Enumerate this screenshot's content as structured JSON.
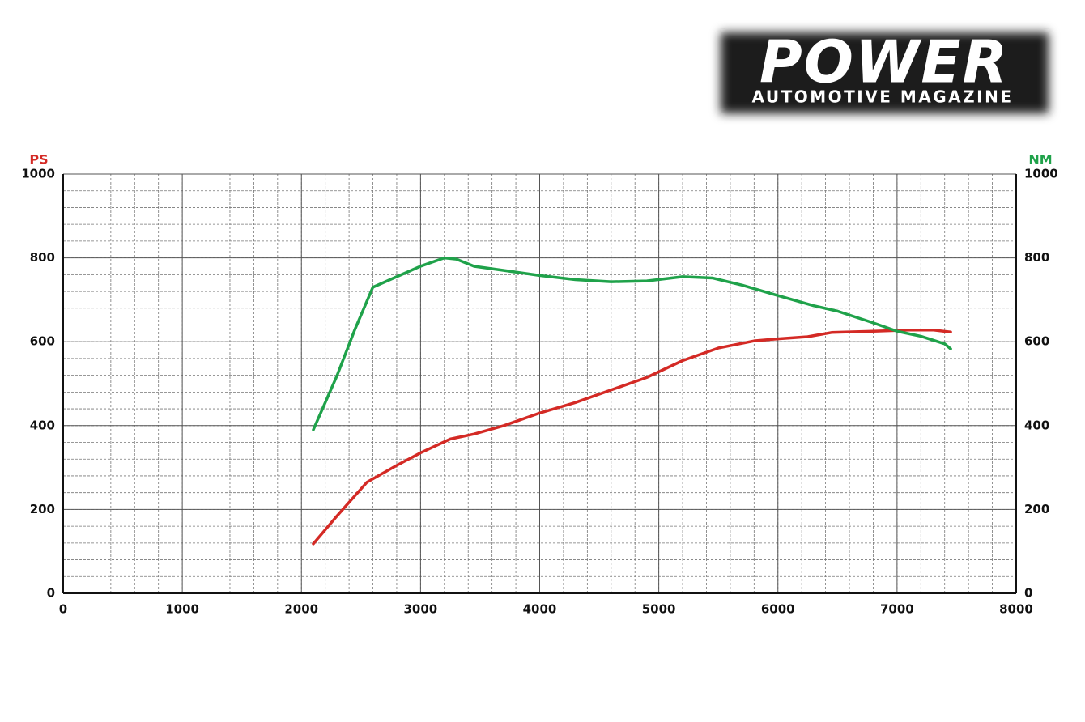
{
  "logo": {
    "title": "POWER",
    "subtitle": "AUTOMOTIVE MAGAZINE"
  },
  "chart_data": {
    "type": "line",
    "x_ticks_source": null,
    "series": [
      {
        "name": "PS",
        "color": "#d42a25",
        "x": [
          2100,
          2300,
          2550,
          2800,
          3000,
          3250,
          3450,
          3700,
          4000,
          4300,
          4600,
          4900,
          5200,
          5500,
          5800,
          6000,
          6250,
          6450,
          6800,
          7100,
          7300,
          7450
        ],
        "values": [
          118,
          185,
          265,
          305,
          335,
          368,
          380,
          400,
          430,
          455,
          485,
          515,
          555,
          585,
          602,
          607,
          612,
          622,
          625,
          628,
          628,
          623
        ]
      },
      {
        "name": "NM",
        "color": "#1fa24a",
        "axis": "y2",
        "x": [
          2100,
          2300,
          2450,
          2600,
          2800,
          3000,
          3200,
          3300,
          3450,
          3700,
          4000,
          4300,
          4600,
          4900,
          5200,
          5450,
          5700,
          6000,
          6300,
          6500,
          6800,
          7000,
          7200,
          7400,
          7450
        ],
        "values": [
          390,
          520,
          630,
          730,
          755,
          780,
          800,
          797,
          780,
          770,
          758,
          748,
          743,
          745,
          755,
          752,
          735,
          710,
          686,
          673,
          645,
          625,
          613,
          595,
          583
        ]
      }
    ],
    "xlim": [
      0,
      8000
    ],
    "xticks": [
      0,
      1000,
      2000,
      3000,
      4000,
      5000,
      6000,
      7000,
      8000
    ],
    "ylim": [
      0,
      1000
    ],
    "yticks": [
      0,
      200,
      400,
      600,
      800,
      1000
    ],
    "y2lim": [
      0,
      1000
    ],
    "y2ticks": [
      0,
      200,
      400,
      600,
      800,
      1000
    ],
    "grid": true,
    "minor_grid": {
      "x": 200,
      "y": 40
    }
  }
}
